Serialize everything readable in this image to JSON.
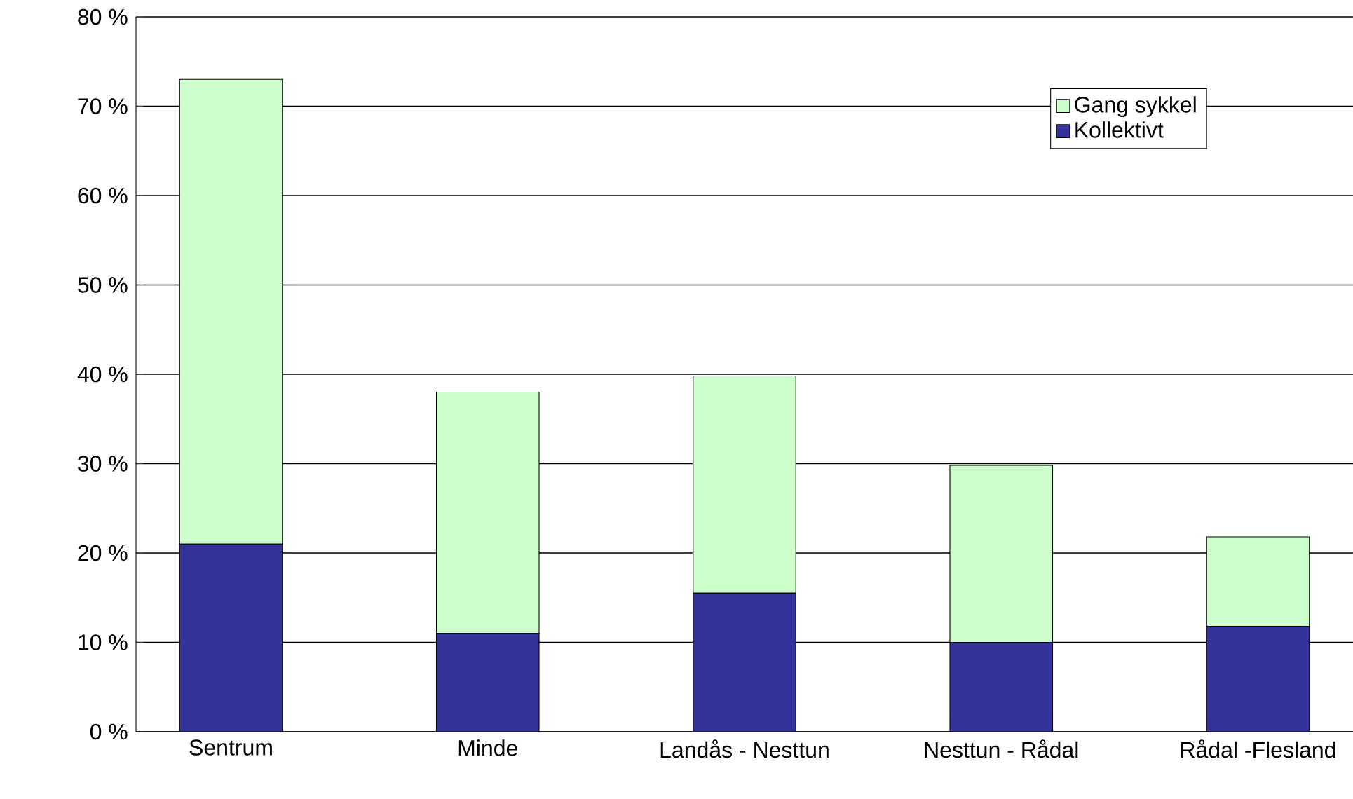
{
  "chart_data": {
    "type": "bar",
    "stacked": true,
    "categories": [
      "Sentrum",
      "Minde",
      "Landås - Nesttun",
      "Nesttun - Rådal",
      "Rådal -Flesland"
    ],
    "series": [
      {
        "name": "Kollektivt",
        "color": "#333399",
        "values": [
          21,
          11,
          15.5,
          10,
          11.8
        ]
      },
      {
        "name": "Gang sykkel",
        "color": "#ccffcc",
        "values": [
          52,
          27,
          24.3,
          19.8,
          10
        ]
      }
    ],
    "ylim": [
      0,
      80
    ],
    "yticks": [
      {
        "value": 0,
        "label": "0 %"
      },
      {
        "value": 10,
        "label": "10 %"
      },
      {
        "value": 20,
        "label": "20 %"
      },
      {
        "value": 30,
        "label": "30 %"
      },
      {
        "value": 40,
        "label": "40 %"
      },
      {
        "value": 50,
        "label": "50 %"
      },
      {
        "value": 60,
        "label": "60 %"
      },
      {
        "value": 70,
        "label": "70 %"
      },
      {
        "value": 80,
        "label": "80 %"
      }
    ],
    "grid": "y",
    "legend": "top right"
  }
}
